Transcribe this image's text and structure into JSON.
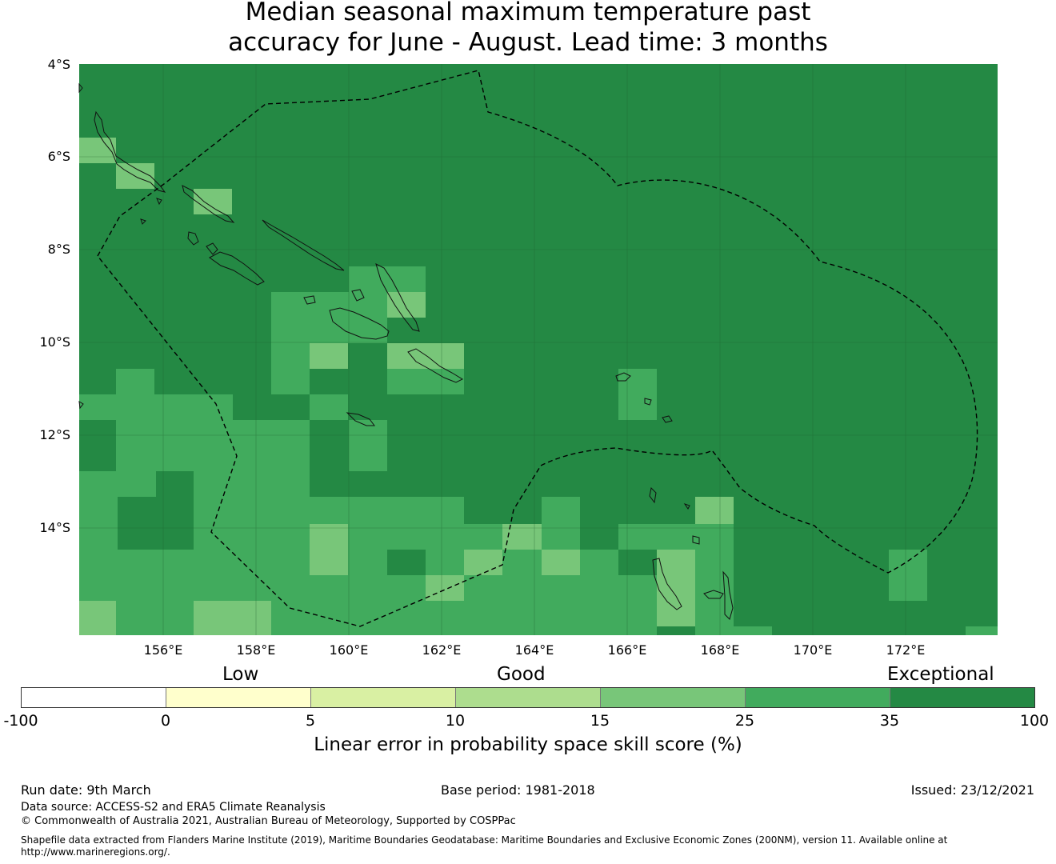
{
  "title": {
    "line1": "Median seasonal maximum temperature past",
    "line2": "accuracy for June - August. Lead time: 3 months"
  },
  "map": {
    "lat_labels": [
      "4°S",
      "6°S",
      "8°S",
      "10°S",
      "12°S",
      "14°S"
    ],
    "lon_labels": [
      "156°E",
      "158°E",
      "160°E",
      "162°E",
      "164°E",
      "166°E",
      "168°E",
      "170°E",
      "172°E"
    ],
    "colors": {
      "exceptional_dark": "#248944",
      "band_25_35": "#41ab5d",
      "band_15_25": "#78c679",
      "band_10_15": "#addd8e",
      "band_5_10": "#d9f0a3",
      "band_0_5": "#ffffcc",
      "band_neg": "#ffffff"
    }
  },
  "legend": {
    "categories": {
      "low": "Low",
      "good": "Good",
      "exceptional": "Exceptional"
    },
    "ticks": [
      "-100",
      "0",
      "5",
      "10",
      "15",
      "25",
      "35",
      "100"
    ],
    "colors": [
      "#ffffff",
      "#ffffcc",
      "#d9f0a3",
      "#addd8e",
      "#78c679",
      "#41ab5d",
      "#248944"
    ],
    "title": "Linear error in probability space skill score (%)"
  },
  "footer": {
    "run_date": "Run date: 9th March",
    "base_period": "Base period: 1981-2018",
    "issued": "Issued: 23/12/2021",
    "data_source": "Data source: ACCESS-S2 and ERA5 Climate Reanalysis",
    "copyright": "© Commonwealth of Australia 2021, Australian Bureau of Meteorology, Supported by COSPPac",
    "shapefile_line1": "Shapefile data extracted from Flanders Marine Institute (2019), Maritime Boundaries Geodatabase: Maritime Boundaries and Exclusive Economic Zones (200NM), version 11. Available online at",
    "shapefile_line2": "http://www.marineregions.org/."
  }
}
